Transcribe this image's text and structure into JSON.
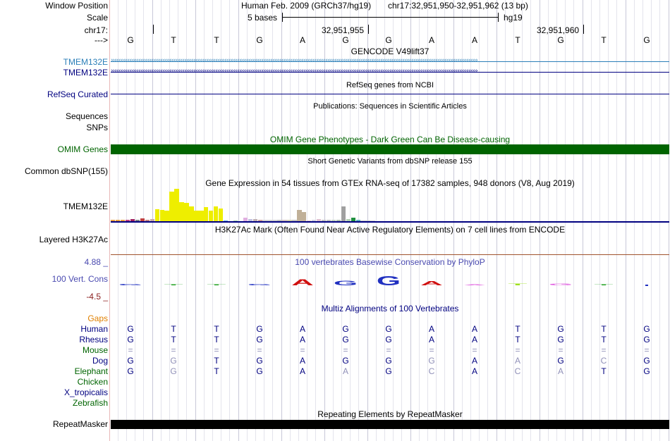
{
  "labels": {
    "window_position": "Window Position",
    "scale": "Scale",
    "chr": "chr17:",
    "strand": "--->",
    "tmem_gencode_1": "TMEM132E",
    "tmem_gencode_2": "TMEM132E",
    "refseq": "RefSeq Curated",
    "sequences": "Sequences",
    "snps": "SNPs",
    "omim": "OMIM Genes",
    "common_dbsnp": "Common dbSNP(155)",
    "gtex_gene": "TMEM132E",
    "h3k27ac": "Layered H3K27Ac",
    "phylop_max": "4.88 _",
    "phylop_name": "100 Vert. Cons",
    "phylop_min": "-4.5 _",
    "gaps": "Gaps",
    "repeatmasker": "RepeatMasker"
  },
  "header": {
    "assembly": "Human Feb. 2009 (GRCh37/hg19)",
    "position": "chr17:32,951,950-32,951,962 (13 bp)",
    "scale_text": "5 bases",
    "scale_db": "hg19",
    "coord_1": "32,951,955",
    "coord_2": "32,951,960"
  },
  "sequence": [
    "G",
    "T",
    "T",
    "G",
    "A",
    "G",
    "G",
    "A",
    "A",
    "T",
    "G",
    "T",
    "G"
  ],
  "titles": {
    "gencode": "GENCODE V49lift37",
    "refseq": "RefSeq genes from NCBI",
    "publications": "Publications: Sequences in Scientific Articles",
    "omim": "OMIM Gene Phenotypes - Dark Green Can Be Disease-causing",
    "dbsnp": "Short Genetic Variants from dbSNP release 155",
    "gtex": "Gene Expression in 54 tissues from GTEx RNA-seq of 17382 samples, 948 donors (V8, Aug 2019)",
    "h3k27ac": "H3K27Ac Mark (Often Found Near Active Regulatory Elements) on 7 cell lines from ENCODE",
    "phylop": "100 vertebrates Basewise Conservation by PhyloP",
    "multiz": "Multiz Alignments of 100 Vertebrates",
    "repeatmasker": "Repeating Elements by RepeatMasker"
  },
  "gtex_bars": [
    {
      "v": 2,
      "c": "#e8a040"
    },
    {
      "v": 2,
      "c": "#e8a040"
    },
    {
      "v": 2,
      "c": "#e8a040"
    },
    {
      "v": 2,
      "c": "#c04080"
    },
    {
      "v": 3,
      "c": "#a02060"
    },
    {
      "v": 2,
      "c": "#808080"
    },
    {
      "v": 4,
      "c": "#c04040"
    },
    {
      "v": 2,
      "c": "#c08080"
    },
    {
      "v": 3,
      "c": "#c8a8a8"
    },
    {
      "v": 16,
      "c": "#eeee00"
    },
    {
      "v": 15,
      "c": "#eeee00"
    },
    {
      "v": 14,
      "c": "#eeee00"
    },
    {
      "v": 40,
      "c": "#eeee00"
    },
    {
      "v": 44,
      "c": "#eeee00"
    },
    {
      "v": 26,
      "c": "#eeee00"
    },
    {
      "v": 25,
      "c": "#eeee00"
    },
    {
      "v": 20,
      "c": "#eeee00"
    },
    {
      "v": 14,
      "c": "#eeee00"
    },
    {
      "v": 14,
      "c": "#eeee00"
    },
    {
      "v": 19,
      "c": "#eeee00"
    },
    {
      "v": 14,
      "c": "#eeee00"
    },
    {
      "v": 20,
      "c": "#eeee00"
    },
    {
      "v": 17,
      "c": "#eeee00"
    },
    {
      "v": 1,
      "c": "#60b0e0"
    },
    {
      "v": 0,
      "c": "#ffffff"
    },
    {
      "v": 1,
      "c": "#a0d0a0"
    },
    {
      "v": 0,
      "c": "#ffffff"
    },
    {
      "v": 5,
      "c": "#e0b0e0"
    },
    {
      "v": 3,
      "c": "#c0c0e0"
    },
    {
      "v": 3,
      "c": "#c0b0b0"
    },
    {
      "v": 2,
      "c": "#d0a0a0"
    },
    {
      "v": 2,
      "c": "#d0d0d0"
    },
    {
      "v": 2,
      "c": "#d0d0d0"
    },
    {
      "v": 2,
      "c": "#d0d0d0"
    },
    {
      "v": 2,
      "c": "#c0c0c0"
    },
    {
      "v": 2,
      "c": "#d0c0c0"
    },
    {
      "v": 2,
      "c": "#d0d0b0"
    },
    {
      "v": 2,
      "c": "#c0c0c0"
    },
    {
      "v": 15,
      "c": "#c0b098"
    },
    {
      "v": 12,
      "c": "#c0b098"
    },
    {
      "v": 1,
      "c": "#e0c0c0"
    },
    {
      "v": 2,
      "c": "#d0d0e0"
    },
    {
      "v": 3,
      "c": "#e0c0d0"
    },
    {
      "v": 2,
      "c": "#c0c0c0"
    },
    {
      "v": 2,
      "c": "#c0c0c0"
    },
    {
      "v": 2,
      "c": "#c0d0c0"
    },
    {
      "v": 2,
      "c": "#b0c0b0"
    },
    {
      "v": 20,
      "c": "#a0a0a0"
    },
    {
      "v": 3,
      "c": "#b0d0b0"
    },
    {
      "v": 5,
      "c": "#209040"
    },
    {
      "v": 2,
      "c": "#60b0c0"
    },
    {
      "v": 1,
      "c": "#c0c0c0"
    },
    {
      "v": 1,
      "c": "#c0c0c0"
    },
    {
      "v": 1,
      "c": "#d0d0d0"
    }
  ],
  "phylop_letters": [
    {
      "b": "G",
      "h": 0.12,
      "c": "#2030c0"
    },
    {
      "b": "T",
      "h": 0.1,
      "c": "#20a020"
    },
    {
      "b": "T",
      "h": 0.08,
      "c": "#20a020"
    },
    {
      "b": "G",
      "h": 0.12,
      "c": "#2030c0"
    },
    {
      "b": "A",
      "h": 0.6,
      "c": "#d01010"
    },
    {
      "b": "G",
      "h": 0.45,
      "c": "#2030c0"
    },
    {
      "b": "G",
      "h": 0.9,
      "c": "#2030c0"
    },
    {
      "b": "A",
      "h": 0.4,
      "c": "#d01010"
    },
    {
      "b": "A",
      "h": 0.08,
      "c": "#e060e0"
    },
    {
      "b": "T",
      "h": 0.18,
      "c": "#a0e020"
    },
    {
      "b": "G",
      "h": 0.2,
      "c": "#e060e0"
    },
    {
      "b": "T",
      "h": 0.08,
      "c": "#20a020"
    },
    {
      "b": "G",
      "h": 0.0,
      "c": "#2030c0"
    }
  ],
  "multiz": [
    {
      "name": "Human",
      "color": "#000080",
      "bases": [
        "G",
        "T",
        "T",
        "G",
        "A",
        "G",
        "G",
        "A",
        "A",
        "T",
        "G",
        "T",
        "G"
      ],
      "dim": []
    },
    {
      "name": "Rhesus",
      "color": "#000080",
      "bases": [
        "G",
        "T",
        "T",
        "G",
        "A",
        "G",
        "G",
        "A",
        "A",
        "T",
        "G",
        "T",
        "G"
      ],
      "dim": []
    },
    {
      "name": "Mouse",
      "color": "#006400",
      "bases": [
        "=",
        "=",
        "=",
        "=",
        "=",
        "=",
        "=",
        "=",
        "=",
        "=",
        "=",
        "=",
        "="
      ],
      "dim": [
        0,
        1,
        2,
        3,
        4,
        5,
        6,
        7,
        8,
        9,
        10,
        11,
        12
      ]
    },
    {
      "name": "Dog",
      "color": "#000080",
      "bases": [
        "G",
        "G",
        "T",
        "G",
        "A",
        "G",
        "G",
        "G",
        "A",
        "A",
        "G",
        "C",
        "G"
      ],
      "dim": [
        1,
        7,
        9,
        11
      ]
    },
    {
      "name": "Elephant",
      "color": "#006400",
      "bases": [
        "G",
        "G",
        "T",
        "G",
        "A",
        "A",
        "G",
        "C",
        "A",
        "C",
        "A",
        "T",
        "G"
      ],
      "dim": [
        1,
        5,
        7,
        9,
        10
      ]
    },
    {
      "name": "Chicken",
      "color": "#006400",
      "bases": [],
      "dim": []
    },
    {
      "name": "X_tropicalis",
      "color": "#000080",
      "bases": [],
      "dim": []
    },
    {
      "name": "Zebrafish",
      "color": "#006400",
      "bases": [],
      "dim": []
    }
  ],
  "colors": {
    "gencode_blue": "#2c7fb8",
    "navy": "#000080",
    "omim_green": "#006400",
    "phylop_blue": "#4a4ab0",
    "phylop_min": "#8b2020",
    "gaps": "#e08000",
    "h3k27ac_line": "#a0522d"
  }
}
